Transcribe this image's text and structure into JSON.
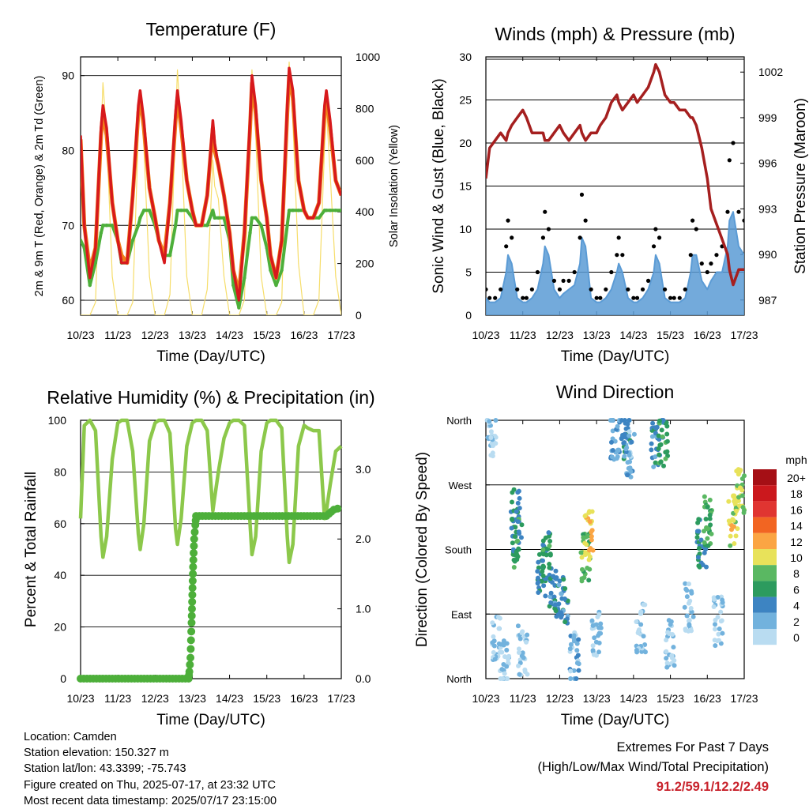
{
  "colors": {
    "temp_2m": "#d7191c",
    "temp_9m": "#f07d1a",
    "dewpoint": "#4daf3a",
    "solar": "#f6dd6a",
    "gust": "#000000",
    "wind": "#5b9bd5",
    "pressure": "#a51f1f",
    "rh": "#8cc84b",
    "precip": "#4daf3a",
    "extremes": "#c8232c"
  },
  "x_tick_labels": [
    "10/23",
    "11/23",
    "12/23",
    "13/23",
    "14/23",
    "15/23",
    "16/23",
    "17/23"
  ],
  "xlabel": "Time (Day/UTC)",
  "chart_data": [
    {
      "id": "temperature",
      "type": "line",
      "title": "Temperature (F)",
      "xlabel": "Time (Day/UTC)",
      "ylabel": "2m & 9m T (Red, Orange) & 2m Td (Green)",
      "ylabel_right": "Solar Insolation (Yellow)",
      "ylim": [
        58,
        92.5
      ],
      "yticks": [
        60,
        70,
        80,
        90
      ],
      "ylim_right": [
        0,
        1000
      ],
      "yticks_right": [
        0,
        200,
        400,
        600,
        800,
        1000
      ],
      "x": [
        0,
        0.1,
        0.25,
        0.4,
        0.55,
        0.6,
        0.7,
        0.85,
        1.0,
        1.1,
        1.25,
        1.4,
        1.55,
        1.6,
        1.7,
        1.85,
        2.0,
        2.1,
        2.25,
        2.4,
        2.55,
        2.6,
        2.7,
        2.85,
        3.0,
        3.1,
        3.25,
        3.4,
        3.55,
        3.6,
        3.7,
        3.85,
        4.0,
        4.1,
        4.25,
        4.4,
        4.55,
        4.6,
        4.7,
        4.85,
        5.0,
        5.1,
        5.25,
        5.4,
        5.55,
        5.6,
        5.7,
        5.85,
        6.0,
        6.1,
        6.25,
        6.4,
        6.55,
        6.6,
        6.7,
        6.85,
        7.0
      ],
      "series": [
        {
          "name": "2m T",
          "values": [
            82,
            70,
            63,
            67,
            83,
            86,
            83,
            73,
            68,
            65,
            65,
            74,
            86,
            88,
            84,
            75,
            71,
            68,
            65,
            73,
            85,
            88,
            84,
            76,
            72,
            70,
            70,
            74,
            84,
            81,
            78,
            74,
            69,
            64,
            60,
            69,
            84,
            90,
            86,
            76,
            71,
            66,
            63,
            68,
            86,
            91,
            88,
            76,
            72,
            71,
            71,
            73,
            86,
            88,
            84,
            76,
            74
          ]
        },
        {
          "name": "9m T",
          "values": [
            81.5,
            70,
            64,
            67,
            82,
            85,
            82,
            73,
            68,
            66,
            65,
            74,
            85,
            87,
            83,
            75,
            71,
            68,
            66,
            73,
            84,
            87,
            83,
            76,
            72,
            70,
            70,
            74,
            83,
            80,
            78,
            74,
            69,
            64,
            61,
            69,
            83,
            89,
            85,
            76,
            71,
            66,
            63,
            68,
            85,
            90,
            87,
            76,
            72,
            71,
            71,
            73,
            85,
            87,
            83,
            76,
            74
          ]
        },
        {
          "name": "2m Td",
          "values": [
            68,
            67,
            62,
            65,
            69,
            70,
            70,
            70,
            68,
            65,
            65,
            68,
            70,
            71,
            72,
            72,
            70,
            68,
            66,
            66,
            70,
            72,
            72,
            72,
            71,
            70,
            70,
            70,
            72,
            71,
            71,
            71,
            68,
            62,
            59,
            63,
            69,
            71,
            71,
            70,
            67,
            64,
            62,
            64,
            70,
            72,
            72,
            72,
            72,
            71,
            71,
            71,
            72,
            72,
            72,
            72,
            72
          ]
        },
        {
          "name": "Solar",
          "axis": "right",
          "values": [
            0,
            0,
            0,
            50,
            700,
            900,
            700,
            150,
            0,
            0,
            0,
            50,
            700,
            850,
            650,
            150,
            0,
            0,
            0,
            80,
            750,
            950,
            700,
            150,
            0,
            0,
            0,
            100,
            600,
            500,
            450,
            150,
            0,
            0,
            0,
            60,
            750,
            950,
            700,
            150,
            0,
            0,
            0,
            50,
            800,
            980,
            750,
            200,
            0,
            0,
            0,
            60,
            650,
            800,
            550,
            150,
            0
          ]
        }
      ]
    },
    {
      "id": "winds",
      "type": "scatter",
      "title": "Winds (mph) & Pressure (mb)",
      "xlabel": "Time (Day/UTC)",
      "ylabel": "Sonic Wind & Gust (Blue, Black)",
      "ylabel_right": "Station Pressure (Maroon)",
      "ylim": [
        0,
        30
      ],
      "yticks": [
        0,
        5,
        10,
        15,
        20,
        25,
        30
      ],
      "ylim_right": [
        986,
        1003
      ],
      "yticks_right": [
        987,
        990,
        993,
        996,
        999,
        1002
      ],
      "x": [
        0,
        0.1,
        0.25,
        0.4,
        0.55,
        0.6,
        0.7,
        0.85,
        1.0,
        1.1,
        1.25,
        1.4,
        1.55,
        1.6,
        1.7,
        1.85,
        2.0,
        2.1,
        2.25,
        2.4,
        2.55,
        2.6,
        2.7,
        2.85,
        3.0,
        3.1,
        3.25,
        3.4,
        3.55,
        3.6,
        3.7,
        3.85,
        4.0,
        4.1,
        4.25,
        4.4,
        4.55,
        4.6,
        4.7,
        4.85,
        5.0,
        5.1,
        5.25,
        5.4,
        5.55,
        5.6,
        5.7,
        5.85,
        6.0,
        6.1,
        6.25,
        6.4,
        6.55,
        6.6,
        6.7,
        6.85,
        7.0
      ],
      "series": [
        {
          "name": "Gust",
          "values": [
            3,
            2,
            2,
            3,
            8,
            11,
            9,
            3,
            2,
            2,
            3,
            5,
            9,
            12,
            10,
            4,
            3,
            4,
            4,
            5,
            9,
            14,
            11,
            3,
            2,
            2,
            3,
            5,
            7,
            9,
            7,
            3,
            2,
            2,
            3,
            4,
            8,
            10,
            9,
            3,
            2,
            2,
            2,
            3,
            7,
            11,
            10,
            6,
            5,
            6,
            7,
            8,
            12,
            18,
            20,
            12,
            11
          ]
        },
        {
          "name": "Wind",
          "values": [
            2,
            1.5,
            1.5,
            2,
            5,
            7,
            6,
            2,
            1.5,
            1.5,
            2,
            3,
            6,
            8,
            7,
            3,
            2,
            2.5,
            3,
            3.5,
            6,
            9,
            8,
            2,
            1.5,
            1.5,
            2,
            3,
            5,
            6,
            5,
            2,
            1.5,
            1.5,
            2,
            3,
            5,
            7,
            6,
            2,
            1.5,
            1.5,
            1.5,
            2,
            5,
            7,
            7,
            4,
            3,
            4,
            5,
            5,
            8,
            11,
            12,
            8,
            7
          ]
        },
        {
          "name": "Pressure",
          "axis": "right",
          "values": [
            995,
            997,
            997.5,
            998,
            997.5,
            998,
            998.5,
            999,
            999.5,
            999,
            998,
            998,
            998,
            997.5,
            997.5,
            998,
            998.5,
            998,
            997.5,
            998,
            998.5,
            998,
            997.5,
            998,
            998,
            998.5,
            999,
            1000,
            1000.5,
            1000,
            999.5,
            1000,
            1000.5,
            1000,
            1000.5,
            1001,
            1002,
            1002.5,
            1002,
            1000.5,
            1000,
            1000,
            999.5,
            999.5,
            999,
            999,
            998.5,
            997,
            995,
            993,
            992,
            991,
            990,
            989,
            988,
            989,
            989
          ]
        }
      ]
    },
    {
      "id": "humidity",
      "type": "line",
      "title": "Relative Humidity (%) & Precipitation (in)",
      "xlabel": "Time (Day/UTC)",
      "ylabel": "Percent & Total Rainfall",
      "ylim": [
        0,
        100
      ],
      "yticks": [
        0,
        20,
        40,
        60,
        80,
        100
      ],
      "ylim_right": [
        0,
        3.7
      ],
      "yticks_right": [
        0.0,
        1.0,
        2.0,
        3.0
      ],
      "yticklabels_right": [
        "0.0",
        "1.0",
        "2.0",
        "3.0"
      ],
      "x": [
        0,
        0.1,
        0.25,
        0.4,
        0.55,
        0.6,
        0.7,
        0.85,
        1.0,
        1.1,
        1.25,
        1.4,
        1.55,
        1.6,
        1.7,
        1.85,
        2.0,
        2.1,
        2.25,
        2.4,
        2.55,
        2.6,
        2.7,
        2.85,
        3.0,
        3.1,
        3.25,
        3.4,
        3.55,
        3.6,
        3.7,
        3.85,
        4.0,
        4.1,
        4.25,
        4.4,
        4.55,
        4.6,
        4.7,
        4.85,
        5.0,
        5.1,
        5.25,
        5.4,
        5.55,
        5.6,
        5.7,
        5.85,
        6.0,
        6.1,
        6.25,
        6.4,
        6.55,
        6.6,
        6.7,
        6.85,
        7.0
      ],
      "series": [
        {
          "name": "RH",
          "values": [
            62,
            98,
            100,
            96,
            55,
            47,
            55,
            85,
            99,
            100,
            100,
            88,
            56,
            50,
            60,
            92,
            99,
            100,
            100,
            95,
            58,
            52,
            62,
            90,
            99,
            100,
            100,
            96,
            65,
            70,
            80,
            93,
            99,
            100,
            100,
            98,
            60,
            48,
            55,
            88,
            99,
            100,
            100,
            97,
            55,
            45,
            52,
            90,
            98,
            97,
            96,
            96,
            62,
            65,
            75,
            88,
            90
          ]
        },
        {
          "name": "Precipitation",
          "axis": "right",
          "points": [
            [
              0,
              0
            ],
            [
              2.9,
              0
            ],
            [
              2.92,
              0.1
            ],
            [
              2.95,
              0.3
            ],
            [
              2.98,
              0.8
            ],
            [
              3.0,
              1.2
            ],
            [
              3.02,
              1.6
            ],
            [
              3.05,
              2.0
            ],
            [
              3.08,
              2.2
            ],
            [
              3.1,
              2.33
            ],
            [
              5,
              2.33
            ],
            [
              6.0,
              2.33
            ],
            [
              6.6,
              2.33
            ],
            [
              6.8,
              2.42
            ],
            [
              7.0,
              2.45
            ]
          ]
        }
      ]
    },
    {
      "id": "direction",
      "type": "scatter",
      "title": "Wind Direction",
      "xlabel": "Time (Day/UTC)",
      "ylabel": "Direction (Colored By Speed)",
      "yticklabels": [
        "North",
        "East",
        "South",
        "West",
        "North"
      ],
      "ylim": [
        0,
        360
      ],
      "colorbar": {
        "title": "mph",
        "labels": [
          "20+",
          "18",
          "16",
          "14",
          "12",
          "10",
          "8",
          "6",
          "4",
          "2",
          "0"
        ],
        "colors": [
          "#a50f15",
          "#cb181d",
          "#e03531",
          "#f26522",
          "#fba543",
          "#e8e25a",
          "#5ab862",
          "#2c9b5e",
          "#3d84c2",
          "#72b2dd",
          "#b9dcf1"
        ]
      },
      "clusters": [
        {
          "x": 0.15,
          "dir": 340,
          "speed": 1
        },
        {
          "x": 0.3,
          "dir": 60,
          "speed": 1
        },
        {
          "x": 0.5,
          "dir": 20,
          "speed": 1
        },
        {
          "x": 0.8,
          "dir": 230,
          "speed": 5
        },
        {
          "x": 0.85,
          "dir": 190,
          "speed": 6
        },
        {
          "x": 1.0,
          "dir": 40,
          "speed": 1
        },
        {
          "x": 1.5,
          "dir": 150,
          "speed": 5
        },
        {
          "x": 1.65,
          "dir": 170,
          "speed": 6
        },
        {
          "x": 1.85,
          "dir": 120,
          "speed": 4
        },
        {
          "x": 2.1,
          "dir": 110,
          "speed": 4
        },
        {
          "x": 2.4,
          "dir": 30,
          "speed": 2
        },
        {
          "x": 2.7,
          "dir": 170,
          "speed": 8
        },
        {
          "x": 2.8,
          "dir": 200,
          "speed": 11
        },
        {
          "x": 3.0,
          "dir": 60,
          "speed": 1
        },
        {
          "x": 3.5,
          "dir": 340,
          "speed": 3
        },
        {
          "x": 3.8,
          "dir": 340,
          "speed": 4
        },
        {
          "x": 3.9,
          "dir": 310,
          "speed": 2
        },
        {
          "x": 4.2,
          "dir": 70,
          "speed": 1
        },
        {
          "x": 4.6,
          "dir": 330,
          "speed": 4
        },
        {
          "x": 4.8,
          "dir": 330,
          "speed": 6
        },
        {
          "x": 5.0,
          "dir": 50,
          "speed": 1
        },
        {
          "x": 5.5,
          "dir": 100,
          "speed": 1
        },
        {
          "x": 5.85,
          "dir": 190,
          "speed": 5
        },
        {
          "x": 6.0,
          "dir": 220,
          "speed": 7
        },
        {
          "x": 6.3,
          "dir": 80,
          "speed": 1
        },
        {
          "x": 6.7,
          "dir": 220,
          "speed": 10
        },
        {
          "x": 6.9,
          "dir": 260,
          "speed": 9
        }
      ]
    }
  ],
  "info": {
    "location": "Location: Camden",
    "elevation": "Station elevation: 150.327 m",
    "latlon": "Station lat/lon: 43.3399; -75.743",
    "created": "Figure created on Thu, 2025-07-17, at 23:32 UTC",
    "recent": "Most recent data timestamp: 2025/07/17 23:15:00"
  },
  "extremes": {
    "title": "Extremes For Past 7 Days",
    "subtitle": "(High/Low/Max Wind/Total Precipitation)",
    "values": "91.2/59.1/12.2/2.49"
  }
}
